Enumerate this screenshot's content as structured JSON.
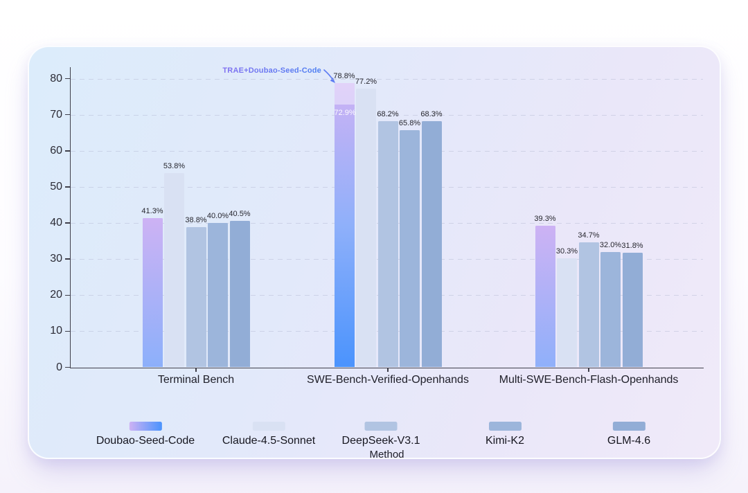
{
  "chart_data": {
    "type": "bar",
    "title": "",
    "xlabel": "Method",
    "ylabel": "",
    "ylim": [
      0,
      80
    ],
    "yticks": [
      0,
      10,
      20,
      30,
      40,
      50,
      60,
      70,
      80
    ],
    "grid": "horizontal-dashed",
    "legend_position": "bottom",
    "value_label_format": "{value}%",
    "categories": [
      "Terminal Bench",
      "SWE-Bench-Verified-Openhands",
      "Multi-SWE-Bench-Flash-Openhands"
    ],
    "series": [
      {
        "name": "Doubao-Seed-Code",
        "values": [
          41.3,
          78.8,
          39.3
        ],
        "color": {
          "type": "gradient-vertical",
          "stops": [
            "#cdb2f4",
            "#8fb0fa",
            "#4a93fd"
          ]
        },
        "stacked_segment": {
          "category_index": 1,
          "base_value": 72.9,
          "total_value": 78.8,
          "base_label": "72.9%",
          "total_label": "78.8%"
        }
      },
      {
        "name": "Claude-4.5-Sonnet",
        "values": [
          53.8,
          77.2,
          30.3
        ],
        "color": "#d9e1f3"
      },
      {
        "name": "DeepSeek-V3.1",
        "values": [
          38.8,
          68.2,
          34.7
        ],
        "color": "#b1c4e2"
      },
      {
        "name": "Kimi-K2",
        "values": [
          40.0,
          65.8,
          32.0
        ],
        "color": "#9cb5db"
      },
      {
        "name": "GLM-4.6",
        "values": [
          40.5,
          68.3,
          31.8
        ],
        "color": "#92add6"
      }
    ],
    "annotation": {
      "text": "TRAE+Doubao-Seed-Code",
      "points_to": {
        "series": "Doubao-Seed-Code",
        "category": "SWE-Bench-Verified-Openhands",
        "value": 78.8
      },
      "color_from": "#8a6ff0",
      "color_to": "#4b7ef2"
    }
  },
  "style": {
    "axis_line_color": "#3f3f4a",
    "tick_label_color": "#2b2b35",
    "value_label_color": "#26262e",
    "grid_color": "#b6bbd4",
    "arrow_color": "#5f7cf2",
    "card_gradient": [
      "#dcecfb",
      "#e2e9fa",
      "#eae7f9",
      "#f0eaf9"
    ]
  }
}
